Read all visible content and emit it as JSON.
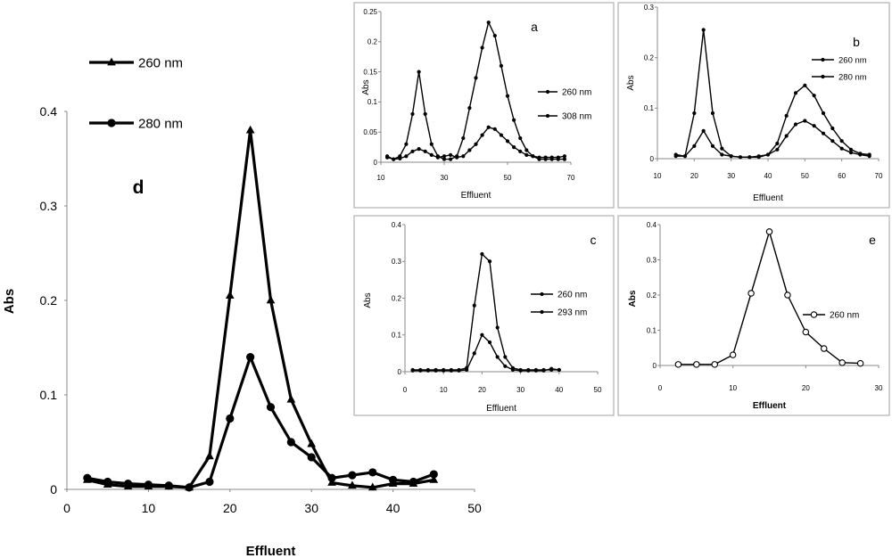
{
  "chart_data": [
    {
      "panel": "d",
      "type": "line",
      "panel_label": "d",
      "xlabel": "Effluent",
      "ylabel": "Abs",
      "xlim": [
        0,
        50
      ],
      "ylim": [
        0,
        0.4
      ],
      "xticks": [
        "0",
        "10",
        "20",
        "30",
        "40",
        "50"
      ],
      "yticks": [
        "0",
        "0.1",
        "0.2",
        "0.3",
        "0.4"
      ],
      "grid": false,
      "legend_position": "top-left, outside plot",
      "series": [
        {
          "name": "260 nm",
          "marker": "triangle",
          "color": "#000000",
          "x": [
            2.5,
            5,
            7.5,
            10,
            12.5,
            15,
            17.5,
            20,
            22.5,
            25,
            27.5,
            30,
            32.5,
            35,
            37.5,
            40,
            42.5,
            45
          ],
          "y": [
            0.01,
            0.005,
            0.003,
            0.003,
            0.003,
            0.002,
            0.035,
            0.205,
            0.38,
            0.2,
            0.095,
            0.048,
            0.007,
            0.004,
            0.002,
            0.006,
            0.006,
            0.01
          ]
        },
        {
          "name": "280 nm",
          "marker": "circle",
          "color": "#000000",
          "x": [
            2.5,
            5,
            7.5,
            10,
            12.5,
            15,
            17.5,
            20,
            22.5,
            25,
            27.5,
            30,
            32.5,
            35,
            37.5,
            40,
            42.5,
            45
          ],
          "y": [
            0.012,
            0.008,
            0.006,
            0.005,
            0.004,
            0.002,
            0.008,
            0.075,
            0.14,
            0.087,
            0.05,
            0.034,
            0.012,
            0.015,
            0.018,
            0.01,
            0.008,
            0.016
          ]
        }
      ]
    },
    {
      "panel": "a",
      "type": "line",
      "panel_label": "a",
      "xlabel": "Effluent",
      "ylabel": "Abs",
      "xlim": [
        10,
        70
      ],
      "ylim": [
        0,
        0.25
      ],
      "xticks": [
        "10",
        "30",
        "50",
        "70"
      ],
      "yticks": [
        "0",
        "0.05",
        "0.1",
        "0.15",
        "0.2",
        "0.25"
      ],
      "grid": false,
      "legend_position": "right",
      "series": [
        {
          "name": "260 nm",
          "marker": "dot",
          "color": "#000000",
          "x": [
            12,
            14,
            16,
            18,
            20,
            22,
            24,
            26,
            28,
            30,
            32,
            34,
            36,
            38,
            40,
            42,
            44,
            46,
            48,
            50,
            52,
            54,
            56,
            58,
            60,
            62,
            64,
            66,
            68
          ],
          "y": [
            0.01,
            0.005,
            0.01,
            0.03,
            0.08,
            0.15,
            0.08,
            0.03,
            0.01,
            0.005,
            0.005,
            0.01,
            0.04,
            0.09,
            0.14,
            0.19,
            0.232,
            0.21,
            0.16,
            0.11,
            0.07,
            0.04,
            0.02,
            0.01,
            0.005,
            0.005,
            0.005,
            0.005,
            0.005
          ]
        },
        {
          "name": "308 nm",
          "marker": "dot",
          "color": "#000000",
          "x": [
            12,
            14,
            16,
            18,
            20,
            22,
            24,
            26,
            28,
            30,
            32,
            34,
            36,
            38,
            40,
            42,
            44,
            46,
            48,
            50,
            52,
            54,
            56,
            58,
            60,
            62,
            64,
            66,
            68
          ],
          "y": [
            0.008,
            0.005,
            0.006,
            0.01,
            0.018,
            0.022,
            0.018,
            0.012,
            0.008,
            0.01,
            0.012,
            0.008,
            0.01,
            0.02,
            0.03,
            0.045,
            0.058,
            0.055,
            0.045,
            0.035,
            0.025,
            0.018,
            0.012,
            0.01,
            0.008,
            0.008,
            0.008,
            0.008,
            0.01
          ]
        }
      ]
    },
    {
      "panel": "b",
      "type": "line",
      "panel_label": "b",
      "xlabel": "Effluent",
      "ylabel": "Abs",
      "xlim": [
        10,
        70
      ],
      "ylim": [
        0,
        0.3
      ],
      "xticks": [
        "10",
        "20",
        "30",
        "40",
        "50",
        "60",
        "70"
      ],
      "yticks": [
        "0",
        "0.1",
        "0.2",
        "0.3"
      ],
      "grid": false,
      "legend_position": "top-right",
      "series": [
        {
          "name": "260 nm",
          "marker": "dot",
          "color": "#000000",
          "x": [
            15,
            17.5,
            20,
            22.5,
            25,
            27.5,
            30,
            32.5,
            35,
            37.5,
            40,
            42.5,
            45,
            47.5,
            50,
            52.5,
            55,
            57.5,
            60,
            62.5,
            65,
            67.5
          ],
          "y": [
            0.008,
            0.005,
            0.09,
            0.255,
            0.09,
            0.02,
            0.005,
            0.003,
            0.003,
            0.003,
            0.008,
            0.03,
            0.085,
            0.13,
            0.145,
            0.125,
            0.09,
            0.06,
            0.035,
            0.018,
            0.01,
            0.008
          ]
        },
        {
          "name": "280 nm",
          "marker": "dot",
          "color": "#000000",
          "x": [
            15,
            17.5,
            20,
            22.5,
            25,
            27.5,
            30,
            32.5,
            35,
            37.5,
            40,
            42.5,
            45,
            47.5,
            50,
            52.5,
            55,
            57.5,
            60,
            62.5,
            65,
            67.5
          ],
          "y": [
            0.005,
            0.005,
            0.025,
            0.055,
            0.025,
            0.008,
            0.005,
            0.003,
            0.003,
            0.005,
            0.008,
            0.018,
            0.045,
            0.068,
            0.075,
            0.065,
            0.05,
            0.035,
            0.02,
            0.012,
            0.008,
            0.005
          ]
        }
      ]
    },
    {
      "panel": "c",
      "type": "line",
      "panel_label": "c",
      "xlabel": "Effluent",
      "ylabel": "Abs",
      "xlim": [
        0,
        50
      ],
      "ylim": [
        0,
        0.4
      ],
      "xticks": [
        "0",
        "10",
        "20",
        "30",
        "40",
        "50"
      ],
      "yticks": [
        "0",
        "0.1",
        "0.2",
        "0.3",
        "0.4"
      ],
      "grid": false,
      "legend_position": "right",
      "series": [
        {
          "name": "260 nm",
          "marker": "dot",
          "color": "#000000",
          "x": [
            2,
            4,
            6,
            8,
            10,
            12,
            14,
            16,
            18,
            20,
            22,
            24,
            26,
            28,
            30,
            32,
            34,
            36,
            38,
            40
          ],
          "y": [
            0.005,
            0.005,
            0.005,
            0.005,
            0.005,
            0.005,
            0.005,
            0.01,
            0.18,
            0.32,
            0.3,
            0.12,
            0.04,
            0.01,
            0.005,
            0.005,
            0.005,
            0.005,
            0.005,
            0.005
          ]
        },
        {
          "name": "293 nm",
          "marker": "dot",
          "color": "#000000",
          "x": [
            2,
            4,
            6,
            8,
            10,
            12,
            14,
            16,
            18,
            20,
            22,
            24,
            26,
            28,
            30,
            32,
            34,
            36,
            38,
            40
          ],
          "y": [
            0.003,
            0.003,
            0.003,
            0.003,
            0.003,
            0.003,
            0.003,
            0.005,
            0.05,
            0.1,
            0.08,
            0.04,
            0.015,
            0.005,
            0.003,
            0.003,
            0.003,
            0.003,
            0.008,
            0.005
          ]
        }
      ]
    },
    {
      "panel": "e",
      "type": "line",
      "panel_label": "e",
      "xlabel": "Effluent",
      "ylabel": "Abs",
      "xlim": [
        0,
        30
      ],
      "ylim": [
        0,
        0.4
      ],
      "xticks": [
        "0",
        "10",
        "20",
        "30"
      ],
      "yticks": [
        "0",
        "0.1",
        "0.2",
        "0.3",
        "0.4"
      ],
      "grid": false,
      "legend_position": "right",
      "series": [
        {
          "name": "260 nm",
          "marker": "open-circle",
          "color": "#000000",
          "x": [
            2.5,
            5,
            7.5,
            10,
            12.5,
            15,
            17.5,
            20,
            22.5,
            25,
            27.5
          ],
          "y": [
            0.003,
            0.003,
            0.003,
            0.03,
            0.205,
            0.38,
            0.2,
            0.095,
            0.048,
            0.008,
            0.006
          ]
        }
      ]
    }
  ]
}
